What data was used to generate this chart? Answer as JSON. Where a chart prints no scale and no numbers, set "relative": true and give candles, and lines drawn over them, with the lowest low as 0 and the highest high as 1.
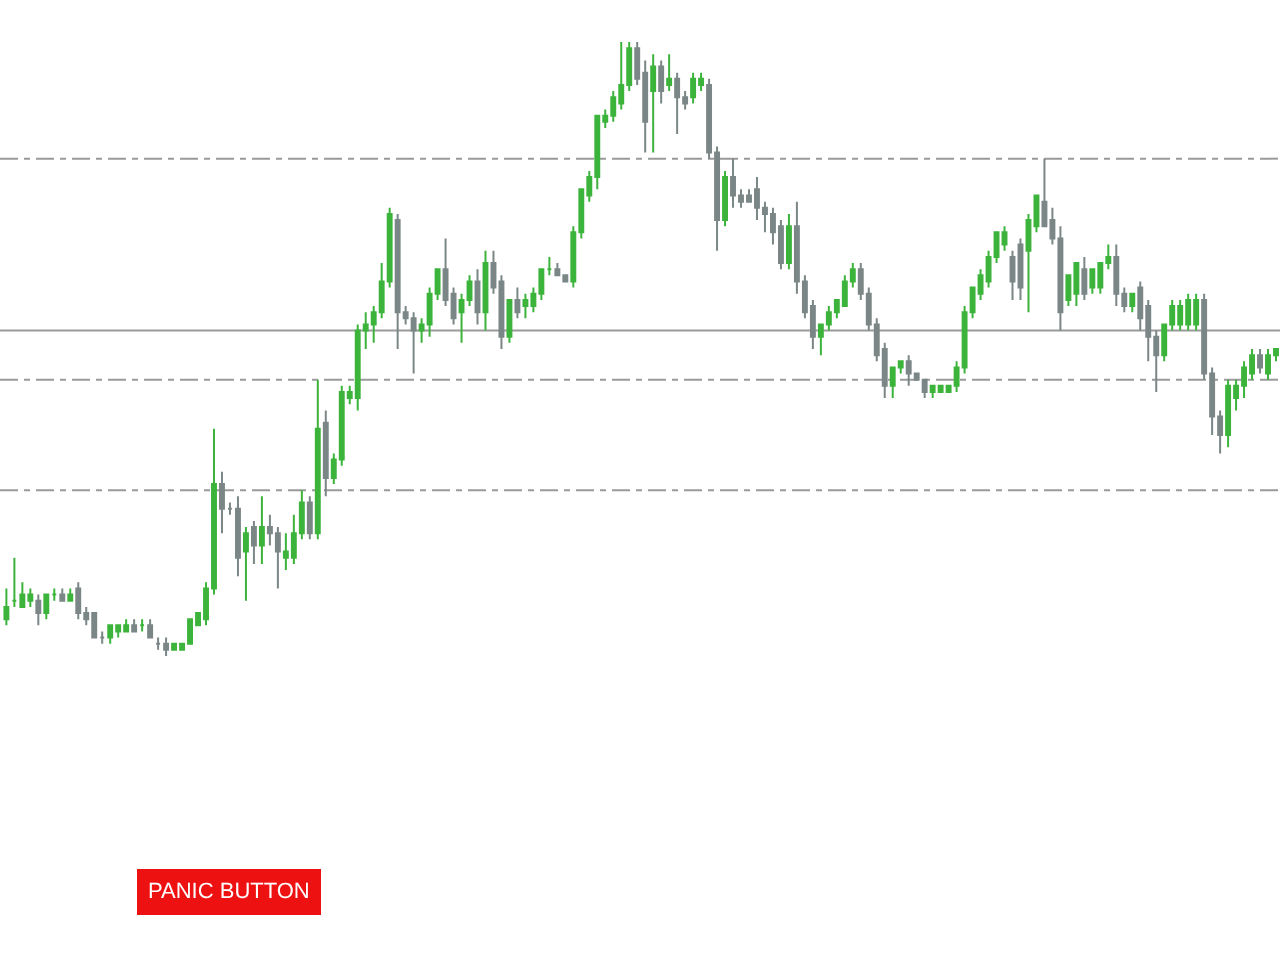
{
  "chart_data": {
    "type": "candlestick",
    "relative": true,
    "categories": [
      null,
      null,
      null,
      null,
      null,
      null,
      null,
      null,
      null,
      null,
      null,
      null,
      null,
      null,
      null,
      null,
      null,
      null,
      null,
      null,
      null,
      null,
      null,
      null,
      null,
      null,
      null,
      null,
      null,
      null,
      null,
      null,
      null,
      null,
      null,
      null,
      null,
      null,
      null,
      null,
      null,
      null,
      null,
      null,
      null,
      null,
      null,
      null,
      null,
      null,
      null,
      null,
      null,
      null,
      null,
      null,
      null,
      null,
      null,
      null,
      null,
      null,
      null,
      null,
      null,
      null,
      null,
      null,
      null,
      null,
      null,
      null,
      null,
      null,
      null,
      null,
      null,
      null,
      null,
      null,
      null,
      null,
      null,
      null,
      null,
      null,
      null,
      null,
      null,
      null,
      null,
      null,
      null,
      null,
      null,
      null,
      null,
      null,
      null,
      null,
      null,
      null,
      null,
      null,
      null,
      null,
      null,
      null,
      null,
      null,
      null,
      null,
      null,
      null,
      null,
      null,
      null,
      null,
      null,
      null,
      null,
      null,
      null,
      null,
      null,
      null,
      null,
      null,
      null,
      null,
      null,
      null,
      null,
      null,
      null,
      null,
      null,
      null,
      null,
      null,
      null,
      null,
      null,
      null,
      null,
      null,
      null,
      null,
      null,
      null,
      null,
      null,
      null,
      null,
      null,
      null,
      null,
      null,
      null,
      null
    ],
    "ohlc": [
      [
        0.06,
        0.11,
        0.05,
        0.08
      ],
      [
        0.09,
        0.16,
        0.08,
        0.09
      ],
      [
        0.08,
        0.12,
        0.08,
        0.1
      ],
      [
        0.09,
        0.11,
        0.08,
        0.1
      ],
      [
        0.09,
        0.1,
        0.05,
        0.07
      ],
      [
        0.07,
        0.1,
        0.06,
        0.1
      ],
      [
        0.1,
        0.11,
        0.09,
        0.1
      ],
      [
        0.1,
        0.11,
        0.09,
        0.09
      ],
      [
        0.09,
        0.11,
        0.09,
        0.1
      ],
      [
        0.11,
        0.12,
        0.06,
        0.07
      ],
      [
        0.07,
        0.08,
        0.05,
        0.06
      ],
      [
        0.07,
        0.07,
        0.03,
        0.03
      ],
      [
        0.03,
        0.04,
        0.02,
        0.03
      ],
      [
        0.03,
        0.05,
        0.02,
        0.05
      ],
      [
        0.04,
        0.05,
        0.03,
        0.05
      ],
      [
        0.04,
        0.06,
        0.04,
        0.05
      ],
      [
        0.05,
        0.06,
        0.04,
        0.04
      ],
      [
        0.05,
        0.06,
        0.04,
        0.05
      ],
      [
        0.05,
        0.06,
        0.03,
        0.03
      ],
      [
        0.02,
        0.03,
        0.01,
        0.02
      ],
      [
        0.02,
        0.03,
        0,
        0.01
      ],
      [
        0.01,
        0.02,
        0.01,
        0.02
      ],
      [
        0.01,
        0.02,
        0.01,
        0.02
      ],
      [
        0.02,
        0.06,
        0.02,
        0.06
      ],
      [
        0.05,
        0.07,
        0.05,
        0.07
      ],
      [
        0.06,
        0.12,
        0.05,
        0.11
      ],
      [
        0.11,
        0.37,
        0.1,
        0.28
      ],
      [
        0.28,
        0.3,
        0.2,
        0.24
      ],
      [
        0.24,
        0.25,
        0.23,
        0.24
      ],
      [
        0.24,
        0.26,
        0.13,
        0.16
      ],
      [
        0.17,
        0.21,
        0.09,
        0.2
      ],
      [
        0.21,
        0.22,
        0.15,
        0.18
      ],
      [
        0.18,
        0.26,
        0.15,
        0.21
      ],
      [
        0.21,
        0.23,
        0.18,
        0.2
      ],
      [
        0.2,
        0.21,
        0.11,
        0.17
      ],
      [
        0.16,
        0.2,
        0.14,
        0.17
      ],
      [
        0.16,
        0.23,
        0.15,
        0.2
      ],
      [
        0.2,
        0.27,
        0.19,
        0.25
      ],
      [
        0.25,
        0.26,
        0.19,
        0.2
      ],
      [
        0.2,
        0.45,
        0.19,
        0.37
      ],
      [
        0.38,
        0.4,
        0.26,
        0.29
      ],
      [
        0.29,
        0.33,
        0.28,
        0.32
      ],
      [
        0.32,
        0.44,
        0.31,
        0.43
      ],
      [
        0.42,
        0.44,
        0.41,
        0.43
      ],
      [
        0.42,
        0.54,
        0.4,
        0.53
      ],
      [
        0.53,
        0.56,
        0.5,
        0.54
      ],
      [
        0.54,
        0.57,
        0.51,
        0.56
      ],
      [
        0.56,
        0.64,
        0.55,
        0.61
      ],
      [
        0.61,
        0.73,
        0.6,
        0.72
      ],
      [
        0.71,
        0.72,
        0.5,
        0.56
      ],
      [
        0.56,
        0.57,
        0.54,
        0.55
      ],
      [
        0.55,
        0.56,
        0.46,
        0.53
      ],
      [
        0.53,
        0.55,
        0.51,
        0.54
      ],
      [
        0.54,
        0.6,
        0.52,
        0.59
      ],
      [
        0.59,
        0.63,
        0.58,
        0.63
      ],
      [
        0.63,
        0.68,
        0.57,
        0.58
      ],
      [
        0.59,
        0.6,
        0.54,
        0.55
      ],
      [
        0.56,
        0.59,
        0.51,
        0.58
      ],
      [
        0.58,
        0.62,
        0.57,
        0.61
      ],
      [
        0.61,
        0.63,
        0.54,
        0.56
      ],
      [
        0.56,
        0.66,
        0.53,
        0.64
      ],
      [
        0.64,
        0.66,
        0.59,
        0.6
      ],
      [
        0.61,
        0.62,
        0.5,
        0.52
      ],
      [
        0.52,
        0.58,
        0.51,
        0.58
      ],
      [
        0.58,
        0.6,
        0.55,
        0.56
      ],
      [
        0.57,
        0.59,
        0.55,
        0.58
      ],
      [
        0.57,
        0.6,
        0.56,
        0.59
      ],
      [
        0.59,
        0.63,
        0.58,
        0.63
      ],
      [
        0.63,
        0.65,
        0.62,
        0.63
      ],
      [
        0.63,
        0.64,
        0.62,
        0.62
      ],
      [
        0.62,
        0.62,
        0.61,
        0.61
      ],
      [
        0.61,
        0.7,
        0.6,
        0.69
      ],
      [
        0.69,
        0.76,
        0.68,
        0.76
      ],
      [
        0.75,
        0.79,
        0.74,
        0.78
      ],
      [
        0.78,
        0.88,
        0.76,
        0.88
      ],
      [
        0.87,
        0.89,
        0.86,
        0.88
      ],
      [
        0.88,
        0.92,
        0.87,
        0.91
      ],
      [
        0.9,
        1.0,
        0.89,
        0.93
      ],
      [
        0.93,
        1.0,
        0.92,
        0.99
      ],
      [
        0.99,
        1.0,
        0.93,
        0.94
      ],
      [
        0.95,
        0.97,
        0.82,
        0.87
      ],
      [
        0.92,
        0.98,
        0.82,
        0.96
      ],
      [
        0.96,
        0.97,
        0.9,
        0.92
      ],
      [
        0.93,
        0.98,
        0.92,
        0.94
      ],
      [
        0.94,
        0.95,
        0.85,
        0.91
      ],
      [
        0.91,
        0.92,
        0.89,
        0.9
      ],
      [
        0.91,
        0.95,
        0.9,
        0.94
      ],
      [
        0.93,
        0.95,
        0.92,
        0.94
      ],
      [
        0.93,
        0.94,
        0.81,
        0.82
      ],
      [
        0.82,
        0.83,
        0.66,
        0.71
      ],
      [
        0.71,
        0.79,
        0.7,
        0.78
      ],
      [
        0.78,
        0.81,
        0.73,
        0.75
      ],
      [
        0.75,
        0.76,
        0.73,
        0.74
      ],
      [
        0.75,
        0.76,
        0.74,
        0.74
      ],
      [
        0.76,
        0.78,
        0.71,
        0.73
      ],
      [
        0.73,
        0.74,
        0.69,
        0.72
      ],
      [
        0.72,
        0.73,
        0.67,
        0.69
      ],
      [
        0.7,
        0.71,
        0.63,
        0.64
      ],
      [
        0.64,
        0.72,
        0.63,
        0.7
      ],
      [
        0.7,
        0.74,
        0.59,
        0.61
      ],
      [
        0.61,
        0.62,
        0.55,
        0.56
      ],
      [
        0.57,
        0.58,
        0.5,
        0.52
      ],
      [
        0.52,
        0.54,
        0.49,
        0.54
      ],
      [
        0.54,
        0.57,
        0.53,
        0.56
      ],
      [
        0.56,
        0.58,
        0.55,
        0.58
      ],
      [
        0.57,
        0.62,
        0.57,
        0.61
      ],
      [
        0.61,
        0.64,
        0.6,
        0.63
      ],
      [
        0.63,
        0.64,
        0.58,
        0.59
      ],
      [
        0.59,
        0.6,
        0.53,
        0.54
      ],
      [
        0.54,
        0.55,
        0.48,
        0.49
      ],
      [
        0.5,
        0.51,
        0.42,
        0.44
      ],
      [
        0.44,
        0.47,
        0.42,
        0.47
      ],
      [
        0.47,
        0.48,
        0.46,
        0.48
      ],
      [
        0.48,
        0.49,
        0.44,
        0.46
      ],
      [
        0.46,
        0.46,
        0.45,
        0.45
      ],
      [
        0.45,
        0.45,
        0.42,
        0.43
      ],
      [
        0.43,
        0.44,
        0.42,
        0.44
      ],
      [
        0.43,
        0.44,
        0.43,
        0.44
      ],
      [
        0.43,
        0.44,
        0.43,
        0.44
      ],
      [
        0.44,
        0.48,
        0.43,
        0.47
      ],
      [
        0.47,
        0.57,
        0.46,
        0.56
      ],
      [
        0.56,
        0.6,
        0.55,
        0.6
      ],
      [
        0.59,
        0.63,
        0.58,
        0.62
      ],
      [
        0.61,
        0.66,
        0.6,
        0.65
      ],
      [
        0.65,
        0.69,
        0.64,
        0.69
      ],
      [
        0.67,
        0.7,
        0.66,
        0.69
      ],
      [
        0.65,
        0.66,
        0.58,
        0.61
      ],
      [
        0.67,
        0.68,
        0.58,
        0.6
      ],
      [
        0.66,
        0.72,
        0.56,
        0.71
      ],
      [
        0.7,
        0.75,
        0.69,
        0.75
      ],
      [
        0.74,
        0.81,
        0.7,
        0.7
      ],
      [
        0.71,
        0.73,
        0.67,
        0.68
      ],
      [
        0.68,
        0.7,
        0.53,
        0.56
      ],
      [
        0.58,
        0.62,
        0.57,
        0.62
      ],
      [
        0.59,
        0.64,
        0.57,
        0.64
      ],
      [
        0.63,
        0.65,
        0.58,
        0.59
      ],
      [
        0.6,
        0.63,
        0.59,
        0.63
      ],
      [
        0.6,
        0.64,
        0.59,
        0.64
      ],
      [
        0.64,
        0.67,
        0.63,
        0.65
      ],
      [
        0.65,
        0.67,
        0.57,
        0.59
      ],
      [
        0.59,
        0.6,
        0.56,
        0.57
      ],
      [
        0.57,
        0.59,
        0.56,
        0.59
      ],
      [
        0.6,
        0.61,
        0.53,
        0.55
      ],
      [
        0.57,
        0.58,
        0.48,
        0.52
      ],
      [
        0.52,
        0.53,
        0.43,
        0.49
      ],
      [
        0.49,
        0.54,
        0.48,
        0.54
      ],
      [
        0.54,
        0.58,
        0.53,
        0.57
      ],
      [
        0.54,
        0.58,
        0.53,
        0.57
      ],
      [
        0.54,
        0.59,
        0.53,
        0.58
      ],
      [
        0.54,
        0.59,
        0.53,
        0.58
      ],
      [
        0.58,
        0.59,
        0.45,
        0.46
      ],
      [
        0.46,
        0.47,
        0.36,
        0.39
      ],
      [
        0.39,
        0.4,
        0.33,
        0.36
      ],
      [
        0.36,
        0.45,
        0.34,
        0.44
      ],
      [
        0.42,
        0.45,
        0.4,
        0.44
      ],
      [
        0.44,
        0.48,
        0.42,
        0.47
      ],
      [
        0.46,
        0.5,
        0.45,
        0.49
      ],
      [
        0.49,
        0.5,
        0.46,
        0.47
      ],
      [
        0.46,
        0.5,
        0.45,
        0.49
      ],
      [
        0.49,
        0.5,
        0.48,
        0.5
      ]
    ],
    "ref_lines": [
      {
        "axis": "y",
        "value": 0.53,
        "color": "#9a9a9a",
        "line_style": "solid"
      },
      {
        "axis": "y",
        "value": 0.81,
        "color": "#9a9a9a",
        "line_style": "dashed"
      },
      {
        "axis": "y",
        "value": 0.45,
        "color": "#9a9a9a",
        "line_style": "dashed"
      },
      {
        "axis": "y",
        "value": 0.27,
        "color": "#9a9a9a",
        "line_style": "dashed"
      }
    ],
    "annotations": [
      "PANIC BUTTON"
    ]
  }
}
